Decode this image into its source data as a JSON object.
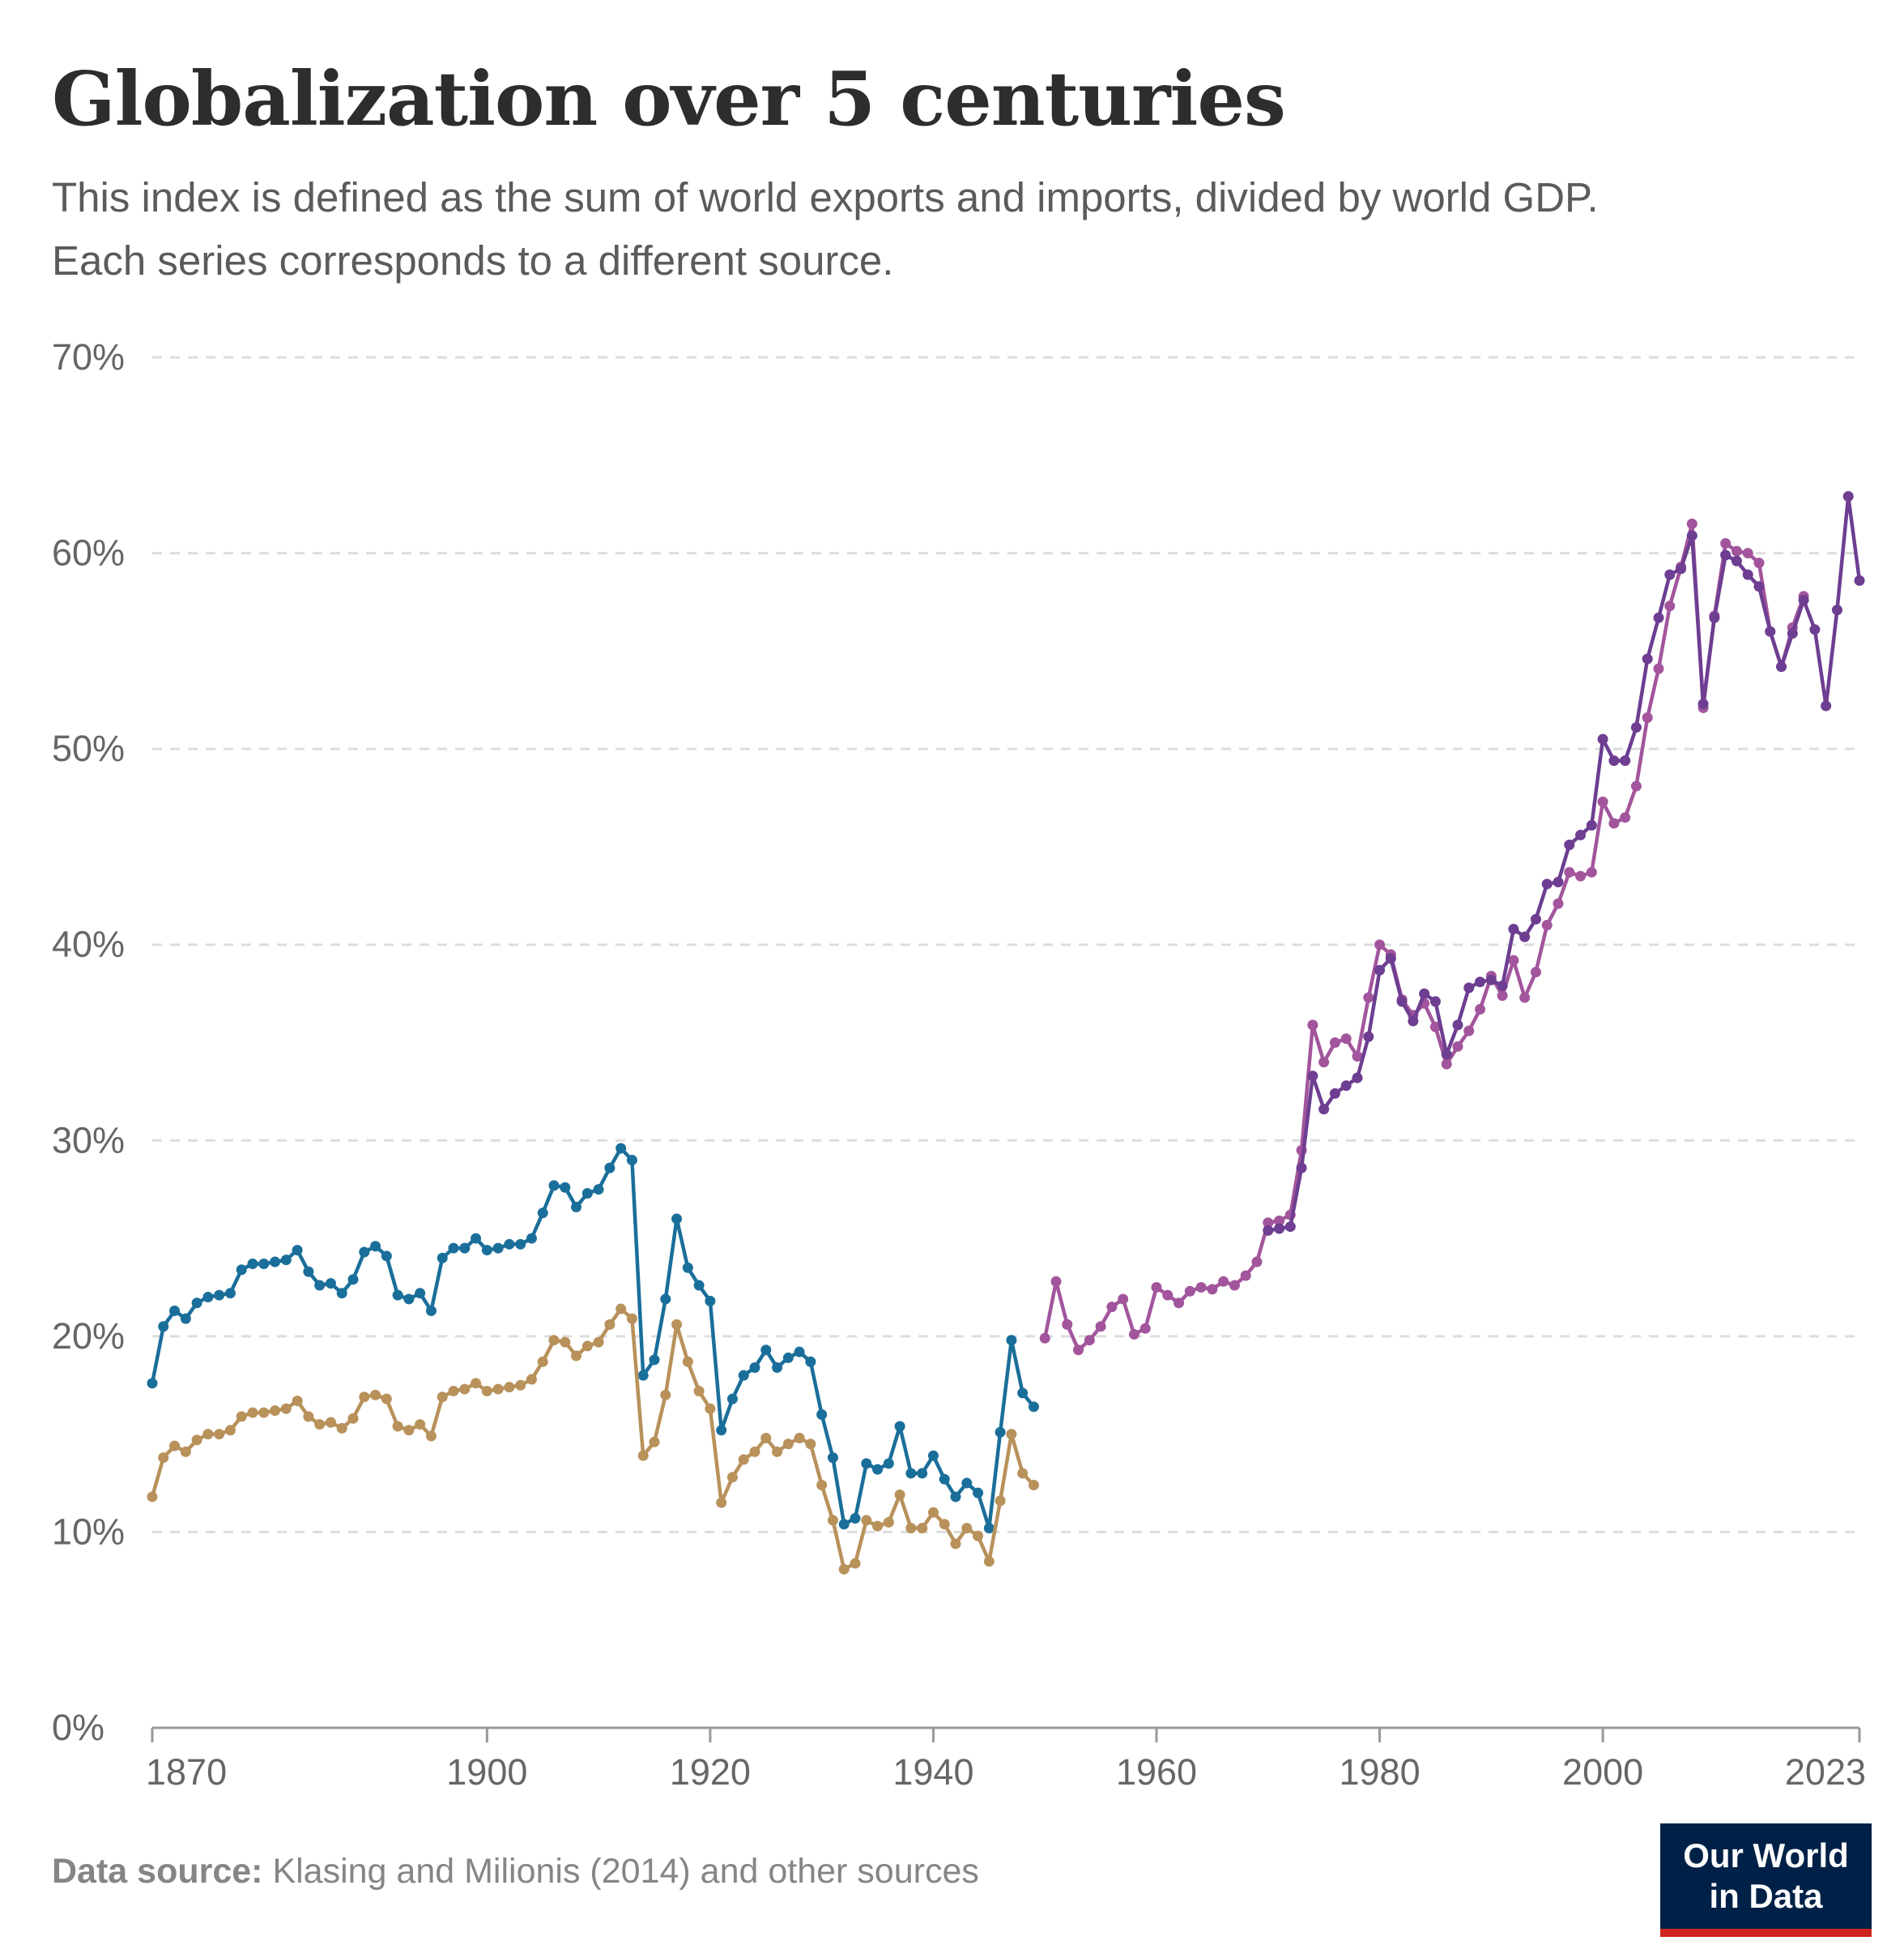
{
  "header": {
    "title": "Globalization over 5 centuries",
    "subtitle": "This index is defined as the sum of world exports and imports, divided by world GDP. Each series corresponds to a different source."
  },
  "footer": {
    "source_label": "Data source:",
    "source_text": "Klasing and Milionis (2014) and other sources",
    "logo_line1": "Our World",
    "logo_line2": "in Data"
  },
  "chart_data": {
    "type": "line",
    "title": "Globalization over 5 centuries",
    "xlim": [
      1870,
      2023
    ],
    "ylim": [
      0,
      70
    ],
    "x_ticks": [
      1870,
      1900,
      1920,
      1940,
      1960,
      1980,
      2000,
      2023
    ],
    "y_ticks": [
      0,
      10,
      20,
      30,
      40,
      50,
      60,
      70
    ],
    "y_tick_labels": [
      "0%",
      "10%",
      "20%",
      "30%",
      "40%",
      "50%",
      "60%",
      "70%"
    ],
    "grid": "horizontal dashed",
    "legend": "none",
    "series": [
      {
        "color": "#1a6e9a",
        "x": [
          1870,
          1871,
          1872,
          1873,
          1874,
          1875,
          1876,
          1877,
          1878,
          1879,
          1880,
          1881,
          1882,
          1883,
          1884,
          1885,
          1886,
          1887,
          1888,
          1889,
          1890,
          1891,
          1892,
          1893,
          1894,
          1895,
          1896,
          1897,
          1898,
          1899,
          1900,
          1901,
          1902,
          1903,
          1904,
          1905,
          1906,
          1907,
          1908,
          1909,
          1910,
          1911,
          1912,
          1913,
          1914,
          1915,
          1916,
          1917,
          1918,
          1919,
          1920,
          1921,
          1922,
          1923,
          1924,
          1925,
          1926,
          1927,
          1928,
          1929,
          1930,
          1931,
          1932,
          1933,
          1934,
          1935,
          1936,
          1937,
          1938,
          1939,
          1940,
          1941,
          1942,
          1943,
          1944,
          1945,
          1946,
          1947,
          1948,
          1949
        ],
        "values": [
          17.6,
          20.5,
          21.3,
          20.9,
          21.7,
          22.0,
          22.1,
          22.2,
          23.4,
          23.7,
          23.7,
          23.8,
          23.9,
          24.4,
          23.3,
          22.6,
          22.7,
          22.2,
          22.9,
          24.3,
          24.6,
          24.1,
          22.1,
          21.9,
          22.2,
          21.3,
          24.0,
          24.5,
          24.5,
          25.0,
          24.4,
          24.5,
          24.7,
          24.7,
          25.0,
          26.3,
          27.7,
          27.6,
          26.6,
          27.3,
          27.5,
          28.6,
          29.6,
          29.0,
          18.0,
          18.8,
          21.9,
          26.0,
          23.5,
          22.6,
          21.8,
          15.2,
          16.8,
          18.0,
          18.4,
          19.3,
          18.4,
          18.9,
          19.2,
          18.7,
          16.0,
          13.8,
          10.4,
          10.7,
          13.5,
          13.2,
          13.5,
          15.4,
          13.0,
          13.0,
          13.9,
          12.7,
          11.8,
          12.5,
          12.0,
          10.2,
          15.1,
          19.8,
          17.1,
          16.4
        ]
      },
      {
        "color": "#b8915b",
        "x": [
          1870,
          1871,
          1872,
          1873,
          1874,
          1875,
          1876,
          1877,
          1878,
          1879,
          1880,
          1881,
          1882,
          1883,
          1884,
          1885,
          1886,
          1887,
          1888,
          1889,
          1890,
          1891,
          1892,
          1893,
          1894,
          1895,
          1896,
          1897,
          1898,
          1899,
          1900,
          1901,
          1902,
          1903,
          1904,
          1905,
          1906,
          1907,
          1908,
          1909,
          1910,
          1911,
          1912,
          1913,
          1914,
          1915,
          1916,
          1917,
          1918,
          1919,
          1920,
          1921,
          1922,
          1923,
          1924,
          1925,
          1926,
          1927,
          1928,
          1929,
          1930,
          1931,
          1932,
          1933,
          1934,
          1935,
          1936,
          1937,
          1938,
          1939,
          1940,
          1941,
          1942,
          1943,
          1944,
          1945,
          1946,
          1947,
          1948,
          1949
        ],
        "values": [
          11.8,
          13.8,
          14.4,
          14.1,
          14.7,
          15.0,
          15.0,
          15.2,
          15.9,
          16.1,
          16.1,
          16.2,
          16.3,
          16.7,
          15.9,
          15.5,
          15.6,
          15.3,
          15.8,
          16.9,
          17.0,
          16.8,
          15.4,
          15.2,
          15.5,
          14.9,
          16.9,
          17.2,
          17.3,
          17.6,
          17.2,
          17.3,
          17.4,
          17.5,
          17.8,
          18.7,
          19.8,
          19.7,
          19.0,
          19.5,
          19.7,
          20.6,
          21.4,
          20.9,
          13.9,
          14.6,
          17.0,
          20.6,
          18.7,
          17.2,
          16.3,
          11.5,
          12.8,
          13.7,
          14.1,
          14.8,
          14.1,
          14.5,
          14.8,
          14.5,
          12.4,
          10.6,
          8.1,
          8.4,
          10.6,
          10.3,
          10.5,
          11.9,
          10.2,
          10.2,
          11.0,
          10.4,
          9.4,
          10.2,
          9.8,
          8.5,
          11.6,
          15.0,
          13.0,
          12.4
        ]
      },
      {
        "color": "#a2559c",
        "x": [
          1950,
          1951,
          1952,
          1953,
          1954,
          1955,
          1956,
          1957,
          1958,
          1959,
          1960,
          1961,
          1962,
          1963,
          1964,
          1965,
          1966,
          1967,
          1968,
          1969,
          1970,
          1971,
          1972,
          1973,
          1974,
          1975,
          1976,
          1977,
          1978,
          1979,
          1980,
          1981,
          1982,
          1983,
          1984,
          1985,
          1986,
          1987,
          1988,
          1989,
          1990,
          1991,
          1992,
          1993,
          1994,
          1995,
          1996,
          1997,
          1998,
          1999,
          2000,
          2001,
          2002,
          2003,
          2004,
          2005,
          2006,
          2007,
          2008,
          2009,
          2010,
          2011,
          2012,
          2013,
          2014,
          2015,
          2016,
          2017,
          2018
        ],
        "values": [
          19.9,
          22.8,
          20.6,
          19.3,
          19.8,
          20.5,
          21.5,
          21.9,
          20.1,
          20.4,
          22.5,
          22.1,
          21.7,
          22.3,
          22.5,
          22.4,
          22.8,
          22.6,
          23.1,
          23.8,
          25.8,
          25.9,
          26.2,
          29.5,
          35.9,
          34.0,
          35.0,
          35.2,
          34.3,
          37.3,
          40.0,
          39.5,
          37.2,
          36.4,
          37.0,
          35.8,
          33.9,
          34.8,
          35.6,
          36.7,
          38.4,
          37.4,
          39.2,
          37.3,
          38.6,
          41.0,
          42.1,
          43.7,
          43.5,
          43.7,
          47.3,
          46.2,
          46.5,
          48.1,
          51.6,
          54.1,
          57.3,
          59.3,
          61.5,
          52.1,
          56.8,
          60.5,
          60.1,
          60.0,
          59.5,
          56.0,
          54.2,
          56.2,
          57.8
        ]
      },
      {
        "color": "#6d3e91",
        "x": [
          1970,
          1971,
          1972,
          1973,
          1974,
          1975,
          1976,
          1977,
          1978,
          1979,
          1980,
          1981,
          1982,
          1983,
          1984,
          1985,
          1986,
          1987,
          1988,
          1989,
          1990,
          1991,
          1992,
          1993,
          1994,
          1995,
          1996,
          1997,
          1998,
          1999,
          2000,
          2001,
          2002,
          2003,
          2004,
          2005,
          2006,
          2007,
          2008,
          2009,
          2010,
          2011,
          2012,
          2013,
          2014,
          2015,
          2016,
          2017,
          2018,
          2019,
          2020,
          2021,
          2022,
          2023
        ],
        "values": [
          25.4,
          25.5,
          25.6,
          28.6,
          33.3,
          31.6,
          32.4,
          32.8,
          33.2,
          35.3,
          38.7,
          39.3,
          37.1,
          36.1,
          37.5,
          37.1,
          34.4,
          35.9,
          37.8,
          38.1,
          38.2,
          37.9,
          40.8,
          40.4,
          41.3,
          43.1,
          43.2,
          45.1,
          45.6,
          46.1,
          50.5,
          49.4,
          49.4,
          51.1,
          54.6,
          56.7,
          58.9,
          59.2,
          60.9,
          52.3,
          56.7,
          59.9,
          59.6,
          58.9,
          58.3,
          56.0,
          54.2,
          55.9,
          57.6,
          56.1,
          52.2,
          57.1,
          62.9,
          58.6
        ]
      }
    ]
  }
}
